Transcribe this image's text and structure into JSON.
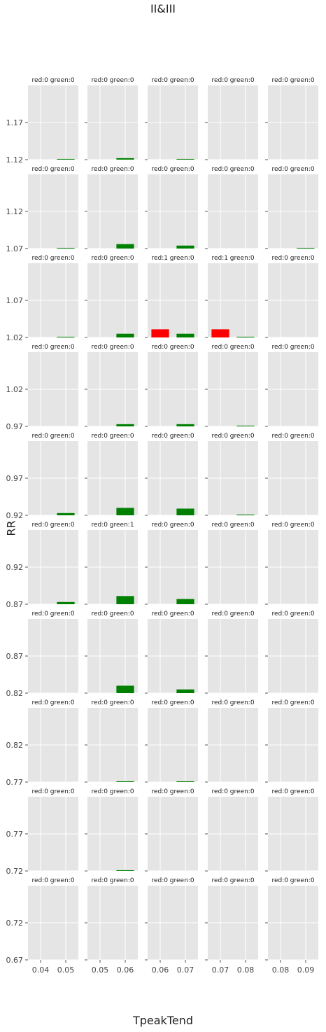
{
  "figure": {
    "title": "II&III",
    "xlabel": "TpeakTend",
    "ylabel": "RR"
  },
  "chart_data": {
    "type": "bar",
    "layout": "small-multiples",
    "rows": 10,
    "cols": 5,
    "grid": true,
    "colors": {
      "red": "#ff0000",
      "green": "#008000",
      "panel_bg": "#e5e5e5",
      "gridline": "#ffffff"
    },
    "row_ranges": [
      {
        "ylim": [
          1.12,
          1.22
        ],
        "yticks": [
          "1.12",
          "1.17"
        ]
      },
      {
        "ylim": [
          1.07,
          1.17
        ],
        "yticks": [
          "1.07",
          "1.12"
        ]
      },
      {
        "ylim": [
          1.02,
          1.12
        ],
        "yticks": [
          "1.02",
          "1.07"
        ]
      },
      {
        "ylim": [
          0.97,
          1.07
        ],
        "yticks": [
          "0.97",
          "1.02"
        ]
      },
      {
        "ylim": [
          0.92,
          1.02
        ],
        "yticks": [
          "0.92",
          "0.97"
        ]
      },
      {
        "ylim": [
          0.87,
          0.97
        ],
        "yticks": [
          "0.87",
          "0.92"
        ]
      },
      {
        "ylim": [
          0.82,
          0.92
        ],
        "yticks": [
          "0.82",
          "0.87"
        ]
      },
      {
        "ylim": [
          0.77,
          0.87
        ],
        "yticks": [
          "0.77",
          "0.82"
        ]
      },
      {
        "ylim": [
          0.72,
          0.82
        ],
        "yticks": [
          "0.72",
          "0.77"
        ]
      },
      {
        "ylim": [
          0.67,
          0.77
        ],
        "yticks": [
          "0.67",
          "0.72"
        ]
      }
    ],
    "col_ranges": [
      {
        "xlim": [
          0.035,
          0.055
        ],
        "xticks": [
          "0.04",
          "0.05"
        ]
      },
      {
        "xlim": [
          0.045,
          0.065
        ],
        "xticks": [
          "0.05",
          "0.06"
        ]
      },
      {
        "xlim": [
          0.055,
          0.075
        ],
        "xticks": [
          "0.06",
          "0.07"
        ]
      },
      {
        "xlim": [
          0.065,
          0.085
        ],
        "xticks": [
          "0.07",
          "0.08"
        ]
      },
      {
        "xlim": [
          0.075,
          0.095
        ],
        "xticks": [
          "0.08",
          "0.09"
        ]
      }
    ],
    "panels": [
      [
        {
          "title": "red:0 green:0",
          "bars": [
            {
              "x": 0.05,
              "y": 0.001,
              "color": "green"
            }
          ]
        },
        {
          "title": "red:0 green:0",
          "bars": [
            {
              "x": 0.06,
              "y": 0.002,
              "color": "green"
            }
          ]
        },
        {
          "title": "red:0 green:0",
          "bars": [
            {
              "x": 0.07,
              "y": 0.001,
              "color": "green"
            }
          ]
        },
        {
          "title": "red:0 green:0",
          "bars": []
        },
        {
          "title": "red:0 green:0",
          "bars": []
        }
      ],
      [
        {
          "title": "red:0 green:0",
          "bars": [
            {
              "x": 0.05,
              "y": 0.001,
              "color": "green"
            }
          ]
        },
        {
          "title": "red:0 green:0",
          "bars": [
            {
              "x": 0.06,
              "y": 0.006,
              "color": "green"
            }
          ]
        },
        {
          "title": "red:0 green:0",
          "bars": [
            {
              "x": 0.07,
              "y": 0.004,
              "color": "green"
            }
          ]
        },
        {
          "title": "red:0 green:0",
          "bars": []
        },
        {
          "title": "red:0 green:0",
          "bars": [
            {
              "x": 0.09,
              "y": 0.001,
              "color": "green"
            }
          ]
        }
      ],
      [
        {
          "title": "red:0 green:0",
          "bars": [
            {
              "x": 0.05,
              "y": 0.001,
              "color": "green"
            }
          ]
        },
        {
          "title": "red:0 green:0",
          "bars": [
            {
              "x": 0.06,
              "y": 0.005,
              "color": "green"
            }
          ]
        },
        {
          "title": "red:1 green:0",
          "bars": [
            {
              "x": 0.06,
              "y": 0.011,
              "color": "red"
            },
            {
              "x": 0.07,
              "y": 0.005,
              "color": "green"
            }
          ]
        },
        {
          "title": "red:1 green:0",
          "bars": [
            {
              "x": 0.07,
              "y": 0.011,
              "color": "red"
            },
            {
              "x": 0.08,
              "y": 0.001,
              "color": "green"
            }
          ]
        },
        {
          "title": "red:0 green:0",
          "bars": []
        }
      ],
      [
        {
          "title": "red:0 green:0",
          "bars": []
        },
        {
          "title": "red:0 green:0",
          "bars": [
            {
              "x": 0.06,
              "y": 0.003,
              "color": "green"
            }
          ]
        },
        {
          "title": "red:0 green:0",
          "bars": [
            {
              "x": 0.07,
              "y": 0.003,
              "color": "green"
            }
          ]
        },
        {
          "title": "red:0 green:0",
          "bars": [
            {
              "x": 0.08,
              "y": 0.001,
              "color": "green"
            }
          ]
        },
        {
          "title": "red:0 green:0",
          "bars": []
        }
      ],
      [
        {
          "title": "red:0 green:0",
          "bars": [
            {
              "x": 0.05,
              "y": 0.003,
              "color": "green"
            }
          ]
        },
        {
          "title": "red:0 green:0",
          "bars": [
            {
              "x": 0.06,
              "y": 0.01,
              "color": "green"
            }
          ]
        },
        {
          "title": "red:0 green:0",
          "bars": [
            {
              "x": 0.07,
              "y": 0.009,
              "color": "green"
            }
          ]
        },
        {
          "title": "red:0 green:0",
          "bars": [
            {
              "x": 0.08,
              "y": 0.001,
              "color": "green"
            }
          ]
        },
        {
          "title": "red:0 green:0",
          "bars": []
        }
      ],
      [
        {
          "title": "red:0 green:0",
          "bars": [
            {
              "x": 0.05,
              "y": 0.003,
              "color": "green"
            }
          ]
        },
        {
          "title": "red:0 green:1",
          "bars": [
            {
              "x": 0.06,
              "y": 0.011,
              "color": "green"
            }
          ]
        },
        {
          "title": "red:0 green:0",
          "bars": [
            {
              "x": 0.07,
              "y": 0.007,
              "color": "green"
            }
          ]
        },
        {
          "title": "red:0 green:0",
          "bars": []
        },
        {
          "title": "red:0 green:0",
          "bars": []
        }
      ],
      [
        {
          "title": "red:0 green:0",
          "bars": []
        },
        {
          "title": "red:0 green:0",
          "bars": [
            {
              "x": 0.06,
              "y": 0.01,
              "color": "green"
            }
          ]
        },
        {
          "title": "red:0 green:0",
          "bars": [
            {
              "x": 0.07,
              "y": 0.005,
              "color": "green"
            }
          ]
        },
        {
          "title": "red:0 green:0",
          "bars": []
        },
        {
          "title": "red:0 green:0",
          "bars": []
        }
      ],
      [
        {
          "title": "red:0 green:0",
          "bars": []
        },
        {
          "title": "red:0 green:0",
          "bars": [
            {
              "x": 0.06,
              "y": 0.001,
              "color": "green"
            }
          ]
        },
        {
          "title": "red:0 green:0",
          "bars": [
            {
              "x": 0.07,
              "y": 0.001,
              "color": "green"
            }
          ]
        },
        {
          "title": "red:0 green:0",
          "bars": []
        },
        {
          "title": "red:0 green:0",
          "bars": []
        }
      ],
      [
        {
          "title": "red:0 green:0",
          "bars": []
        },
        {
          "title": "red:0 green:0",
          "bars": [
            {
              "x": 0.06,
              "y": 0.001,
              "color": "green"
            }
          ]
        },
        {
          "title": "red:0 green:0",
          "bars": []
        },
        {
          "title": "red:0 green:0",
          "bars": []
        },
        {
          "title": "red:0 green:0",
          "bars": []
        }
      ],
      [
        {
          "title": "red:0 green:0",
          "bars": []
        },
        {
          "title": "red:0 green:0",
          "bars": []
        },
        {
          "title": "red:0 green:0",
          "bars": []
        },
        {
          "title": "red:0 green:0",
          "bars": []
        },
        {
          "title": "red:0 green:0",
          "bars": []
        }
      ]
    ]
  }
}
